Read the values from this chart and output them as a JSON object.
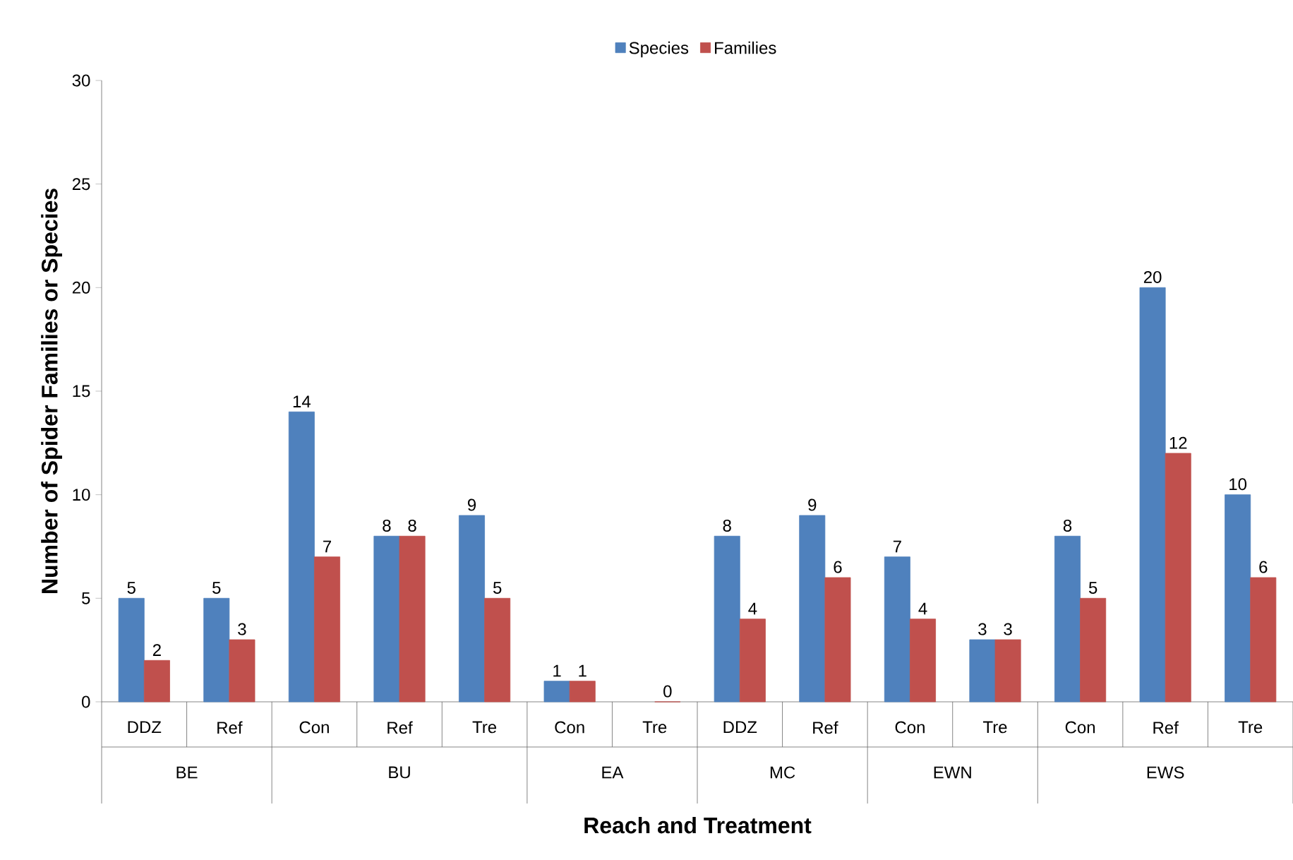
{
  "chart_data": {
    "type": "bar",
    "xlabel": "Reach and Treatment",
    "ylabel": "Number of Spider Families or Species",
    "categories": [
      "DDZ",
      "Ref",
      "Con",
      "Ref",
      "Tre",
      "Con",
      "Tre",
      "DDZ",
      "Ref",
      "Con",
      "Tre",
      "Con",
      "Ref",
      "Tre"
    ],
    "series": [
      {
        "name": "Species",
        "color": "#4f81bd",
        "values": [
          5,
          5,
          14,
          8,
          9,
          1,
          null,
          8,
          9,
          7,
          3,
          8,
          20,
          10
        ]
      },
      {
        "name": "Families",
        "color": "#c0504d",
        "values": [
          2,
          3,
          7,
          8,
          5,
          1,
          0,
          4,
          6,
          4,
          3,
          5,
          12,
          6
        ]
      }
    ],
    "annotations": [
      "BE",
      "BU",
      "EA",
      "MC",
      "EWN",
      "EWS"
    ],
    "ylim": [
      0,
      30
    ],
    "yticks": [
      0,
      5,
      10,
      15,
      20,
      25,
      30
    ],
    "data_labels": true,
    "grid": false,
    "legend": "top"
  }
}
